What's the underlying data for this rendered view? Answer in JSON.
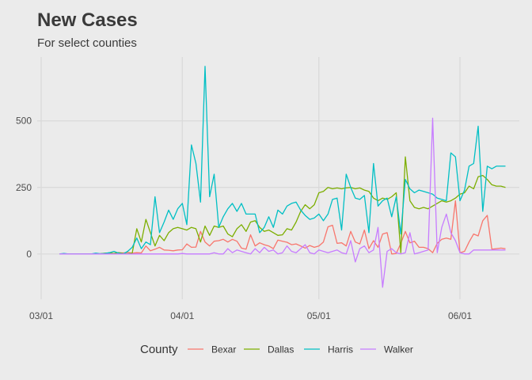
{
  "header": {
    "title": "New Cases",
    "subtitle": "For select counties"
  },
  "chart_data": {
    "type": "line",
    "title": "New Cases",
    "subtitle": "For select counties",
    "xlabel": "",
    "ylabel": "",
    "x_tick_labels": [
      "03/01",
      "04/01",
      "05/01",
      "06/01"
    ],
    "x_tick_days": [
      0,
      31,
      61,
      92
    ],
    "y_ticks": [
      0,
      250,
      500
    ],
    "ylim": [
      -170,
      740
    ],
    "x_range_days": [
      0,
      104
    ],
    "x_unit": "days since 03/01",
    "grid": true,
    "legend": {
      "position": "bottom",
      "title": "County"
    },
    "colors": {
      "Bexar": "#f8766d",
      "Dallas": "#7cae00",
      "Harris": "#00bfc4",
      "Walker": "#c77cff",
      "background": "#ebebeb",
      "grid": "#d9d9d9"
    },
    "series": [
      {
        "name": "Bexar",
        "x": [
          4,
          5,
          6,
          7,
          8,
          9,
          10,
          11,
          12,
          13,
          14,
          15,
          16,
          17,
          18,
          19,
          20,
          21,
          22,
          23,
          24,
          25,
          26,
          27,
          28,
          29,
          30,
          31,
          32,
          33,
          34,
          35,
          36,
          37,
          38,
          39,
          40,
          41,
          42,
          43,
          44,
          45,
          46,
          47,
          48,
          49,
          50,
          51,
          52,
          53,
          54,
          55,
          56,
          57,
          58,
          59,
          60,
          61,
          62,
          63,
          64,
          65,
          66,
          67,
          68,
          69,
          70,
          71,
          72,
          73,
          74,
          75,
          76,
          77,
          78,
          79,
          80,
          81,
          82,
          83,
          84,
          85,
          86,
          87,
          88,
          89,
          90,
          91,
          92,
          93,
          94,
          95,
          96,
          97,
          98,
          99,
          100,
          101,
          102
        ],
        "y": [
          0,
          0,
          0,
          0,
          0,
          0,
          0,
          0,
          0,
          1,
          2,
          1,
          2,
          5,
          4,
          6,
          3,
          5,
          4,
          30,
          12,
          18,
          25,
          15,
          14,
          12,
          15,
          16,
          38,
          25,
          26,
          85,
          45,
          30,
          48,
          50,
          55,
          45,
          55,
          48,
          22,
          18,
          72,
          30,
          42,
          35,
          30,
          20,
          52,
          48,
          44,
          35,
          38,
          30,
          22,
          32,
          25,
          30,
          45,
          102,
          108,
          40,
          42,
          30,
          85,
          45,
          38,
          90,
          20,
          50,
          25,
          75,
          80,
          0,
          2,
          40,
          85,
          42,
          48,
          25,
          25,
          20,
          5,
          40,
          55,
          60,
          55,
          200,
          5,
          10,
          45,
          75,
          68,
          125,
          145,
          18,
          20,
          22,
          20
        ]
      },
      {
        "name": "Dallas",
        "x": [
          4,
          5,
          6,
          7,
          8,
          9,
          10,
          11,
          12,
          13,
          14,
          15,
          16,
          17,
          18,
          19,
          20,
          21,
          22,
          23,
          24,
          25,
          26,
          27,
          28,
          29,
          30,
          31,
          32,
          33,
          34,
          35,
          36,
          37,
          38,
          39,
          40,
          41,
          42,
          43,
          44,
          45,
          46,
          47,
          48,
          49,
          50,
          51,
          52,
          53,
          54,
          55,
          56,
          57,
          58,
          59,
          60,
          61,
          62,
          63,
          64,
          65,
          66,
          67,
          68,
          69,
          70,
          71,
          72,
          73,
          74,
          75,
          76,
          77,
          78,
          79,
          80,
          81,
          82,
          83,
          84,
          85,
          86,
          87,
          88,
          89,
          90,
          91,
          92,
          93,
          94,
          95,
          96,
          97,
          98,
          99,
          100,
          101,
          102
        ],
        "y": [
          0,
          0,
          0,
          0,
          0,
          0,
          0,
          0,
          0,
          1,
          3,
          4,
          2,
          5,
          2,
          1,
          3,
          95,
          45,
          130,
          80,
          30,
          70,
          50,
          80,
          95,
          100,
          95,
          90,
          100,
          95,
          45,
          105,
          70,
          105,
          100,
          105,
          75,
          65,
          95,
          110,
          85,
          120,
          125,
          100,
          85,
          90,
          80,
          70,
          72,
          95,
          90,
          120,
          160,
          185,
          170,
          185,
          230,
          235,
          250,
          245,
          248,
          245,
          248,
          250,
          245,
          248,
          240,
          235,
          210,
          200,
          210,
          205,
          215,
          230,
          5,
          365,
          200,
          175,
          170,
          175,
          170,
          180,
          190,
          200,
          195,
          200,
          210,
          225,
          230,
          255,
          245,
          290,
          295,
          280,
          260,
          255,
          255,
          250
        ]
      },
      {
        "name": "Harris",
        "x": [
          4,
          5,
          6,
          7,
          8,
          9,
          10,
          11,
          12,
          13,
          14,
          15,
          16,
          17,
          18,
          19,
          20,
          21,
          22,
          23,
          24,
          25,
          26,
          27,
          28,
          29,
          30,
          31,
          32,
          33,
          34,
          35,
          36,
          37,
          38,
          39,
          40,
          41,
          42,
          43,
          44,
          45,
          46,
          47,
          48,
          49,
          50,
          51,
          52,
          53,
          54,
          55,
          56,
          57,
          58,
          59,
          60,
          61,
          62,
          63,
          64,
          65,
          66,
          67,
          68,
          69,
          70,
          71,
          72,
          73,
          74,
          75,
          76,
          77,
          78,
          79,
          80,
          81,
          82,
          83,
          84,
          85,
          86,
          87,
          88,
          89,
          90,
          91,
          92,
          93,
          94,
          95,
          96,
          97,
          98,
          99,
          100,
          101,
          102
        ],
        "y": [
          0,
          2,
          0,
          0,
          0,
          0,
          0,
          0,
          3,
          1,
          2,
          5,
          10,
          3,
          0,
          10,
          25,
          60,
          20,
          45,
          35,
          215,
          80,
          120,
          165,
          130,
          170,
          190,
          110,
          410,
          340,
          195,
          705,
          215,
          300,
          100,
          140,
          170,
          190,
          160,
          190,
          150,
          150,
          150,
          80,
          100,
          140,
          100,
          165,
          150,
          180,
          190,
          195,
          165,
          145,
          130,
          135,
          150,
          125,
          150,
          205,
          210,
          90,
          300,
          250,
          210,
          205,
          220,
          80,
          340,
          180,
          200,
          210,
          140,
          215,
          75,
          280,
          245,
          230,
          240,
          235,
          230,
          225,
          210,
          205,
          200,
          380,
          365,
          200,
          240,
          330,
          340,
          480,
          160,
          330,
          320,
          330,
          330,
          330
        ]
      },
      {
        "name": "Walker",
        "x": [
          4,
          5,
          6,
          7,
          8,
          9,
          10,
          11,
          12,
          13,
          14,
          15,
          16,
          17,
          18,
          19,
          20,
          21,
          22,
          23,
          24,
          25,
          26,
          27,
          28,
          29,
          30,
          31,
          32,
          33,
          34,
          35,
          36,
          37,
          38,
          39,
          40,
          41,
          42,
          43,
          44,
          45,
          46,
          47,
          48,
          49,
          50,
          51,
          52,
          53,
          54,
          55,
          56,
          57,
          58,
          59,
          60,
          61,
          62,
          63,
          64,
          65,
          66,
          67,
          68,
          69,
          70,
          71,
          72,
          73,
          74,
          75,
          76,
          77,
          78,
          79,
          80,
          81,
          82,
          83,
          84,
          85,
          86,
          87,
          88,
          89,
          90,
          91,
          92,
          93,
          94,
          95,
          96,
          97,
          98,
          99,
          100,
          101,
          102
        ],
        "y": [
          0,
          0,
          0,
          0,
          0,
          0,
          0,
          0,
          0,
          0,
          0,
          0,
          0,
          0,
          0,
          0,
          0,
          0,
          0,
          0,
          0,
          0,
          0,
          0,
          0,
          0,
          0,
          2,
          0,
          0,
          0,
          0,
          0,
          0,
          5,
          0,
          0,
          20,
          5,
          15,
          10,
          5,
          0,
          20,
          5,
          25,
          10,
          15,
          0,
          5,
          30,
          10,
          5,
          20,
          35,
          5,
          0,
          15,
          10,
          5,
          10,
          15,
          5,
          0,
          50,
          -30,
          20,
          30,
          5,
          15,
          100,
          -125,
          10,
          20,
          5,
          0,
          5,
          80,
          0,
          5,
          10,
          15,
          510,
          5,
          100,
          150,
          80,
          50,
          5,
          0,
          0,
          15,
          15,
          15,
          15,
          15,
          15,
          15,
          15
        ]
      }
    ]
  },
  "legend": {
    "title": "County",
    "items": [
      "Bexar",
      "Dallas",
      "Harris",
      "Walker"
    ]
  }
}
